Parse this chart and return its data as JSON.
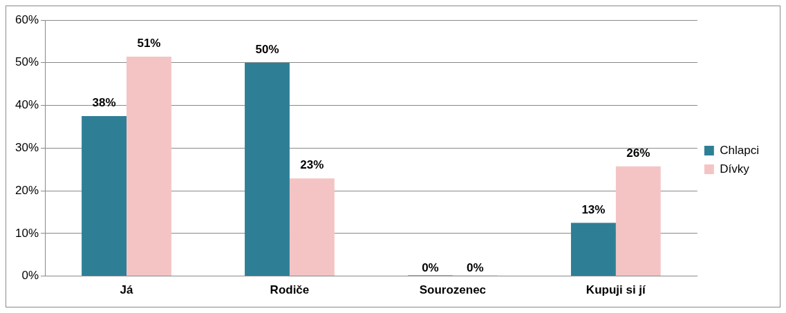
{
  "chart_data": {
    "type": "bar",
    "categories": [
      "Já",
      "Rodiče",
      "Sourozenec",
      "Kupuji si jí"
    ],
    "series": [
      {
        "name": "Chlapci",
        "color": "#2e7f96",
        "values": [
          37.5,
          50,
          0,
          12.5
        ],
        "value_labels": [
          "38%",
          "50%",
          "0%",
          "13%"
        ]
      },
      {
        "name": "Dívky",
        "color": "#f4c4c4",
        "values": [
          51.4,
          22.9,
          0,
          25.7
        ],
        "value_labels": [
          "51%",
          "23%",
          "0%",
          "26%"
        ]
      }
    ],
    "ylim": [
      0,
      60
    ],
    "yticks": [
      {
        "value": 0,
        "label": "0%"
      },
      {
        "value": 10,
        "label": "10%"
      },
      {
        "value": 20,
        "label": "20%"
      },
      {
        "value": 30,
        "label": "30%"
      },
      {
        "value": 40,
        "label": "40%"
      },
      {
        "value": 50,
        "label": "50%"
      },
      {
        "value": 60,
        "label": "60%"
      }
    ],
    "grid": "y",
    "legend": "right"
  }
}
